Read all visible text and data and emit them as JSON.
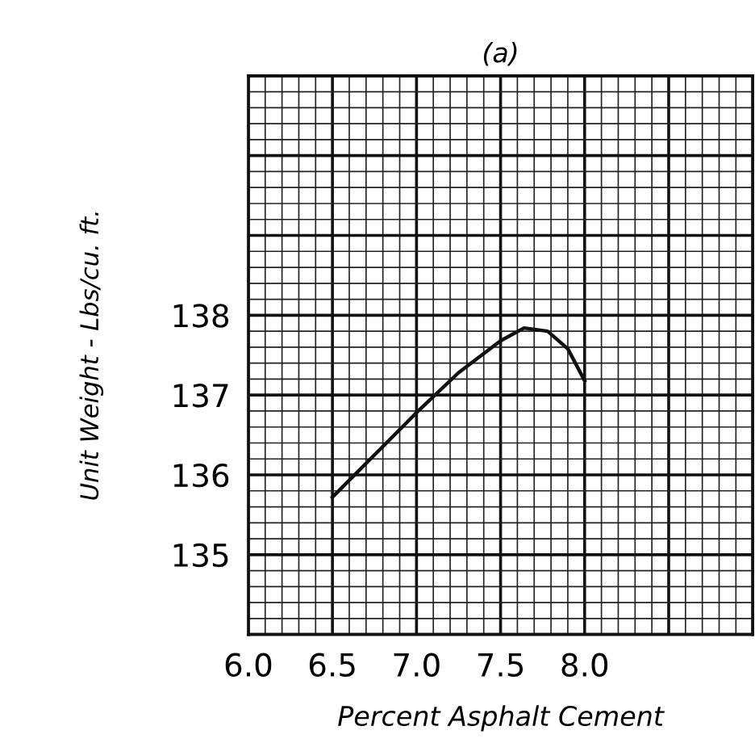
{
  "chart_data": {
    "type": "line",
    "title": "(a)",
    "xlabel": "Percent Asphalt Cement",
    "ylabel": "Unit Weight - Lbs/cu. ft.",
    "x": [
      6.5,
      7.0,
      7.25,
      7.5,
      7.64,
      7.78,
      7.9,
      8.0
    ],
    "series": [
      {
        "color": "#111111",
        "values": [
          135.72,
          136.78,
          137.28,
          137.68,
          137.84,
          137.8,
          137.58,
          137.18
        ]
      }
    ],
    "xlim": [
      6.0,
      9.0
    ],
    "xticks": [
      {
        "value": 6.0,
        "label": "6.0"
      },
      {
        "value": 6.5,
        "label": "6.5"
      },
      {
        "value": 7.0,
        "label": "7.0"
      },
      {
        "value": 7.5,
        "label": "7.5"
      },
      {
        "value": 8.0,
        "label": "8.0"
      },
      {
        "value": 8.5,
        "label": null
      },
      {
        "value": 9.0,
        "label": null
      }
    ],
    "ylim": [
      134,
      141
    ],
    "yticks": [
      {
        "value": 134,
        "label": null
      },
      135,
      136,
      137,
      138,
      {
        "value": 139,
        "label": null
      },
      {
        "value": 140,
        "label": null
      },
      {
        "value": 141,
        "label": null
      }
    ],
    "grid": true,
    "marker": "none",
    "line_style": "solid",
    "legend": false
  }
}
